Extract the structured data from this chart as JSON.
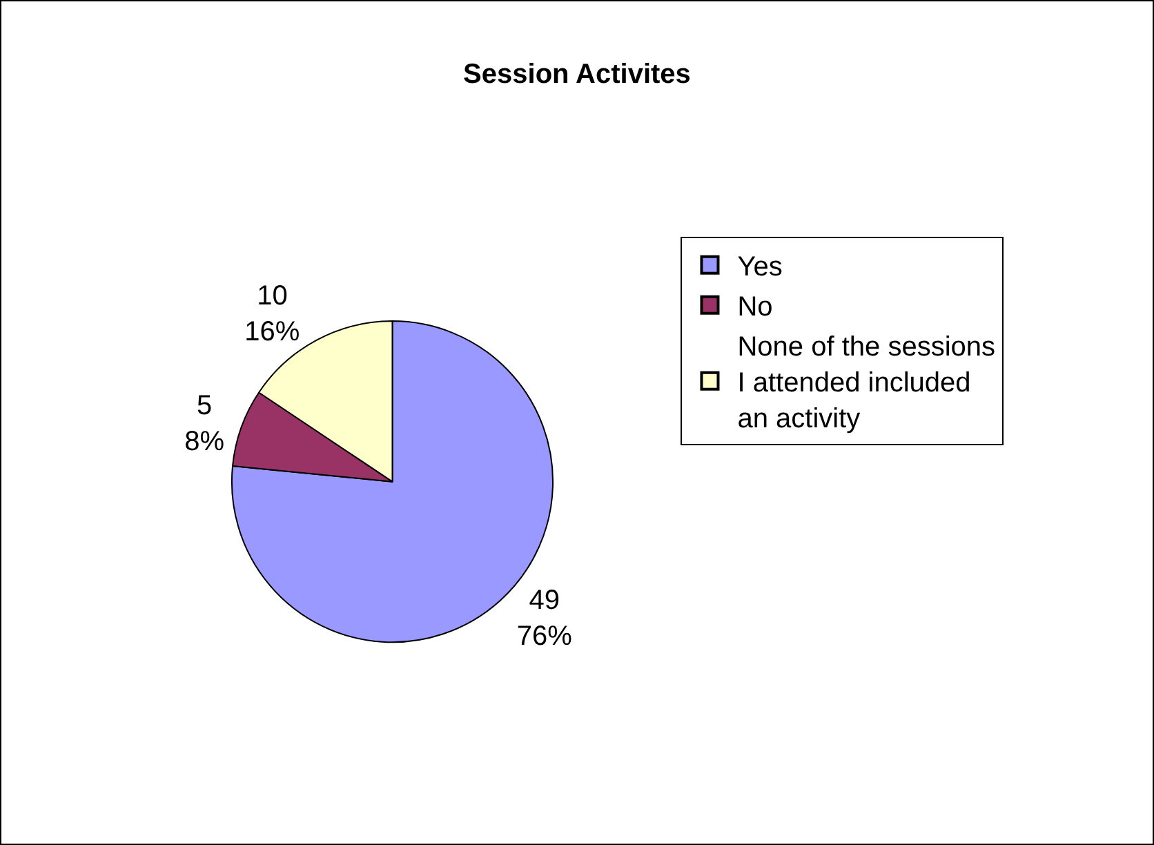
{
  "chart_data": {
    "type": "pie",
    "title": "Session Activites",
    "categories": [
      "Yes",
      "No",
      "None of the sessions I attended included an activity"
    ],
    "values": [
      49,
      5,
      10
    ],
    "colors": [
      "#9999ff",
      "#993366",
      "#ffffcc"
    ],
    "value_labels": [
      "49\n76%",
      "5\n8%",
      "10\n16%"
    ],
    "legend": "right"
  }
}
